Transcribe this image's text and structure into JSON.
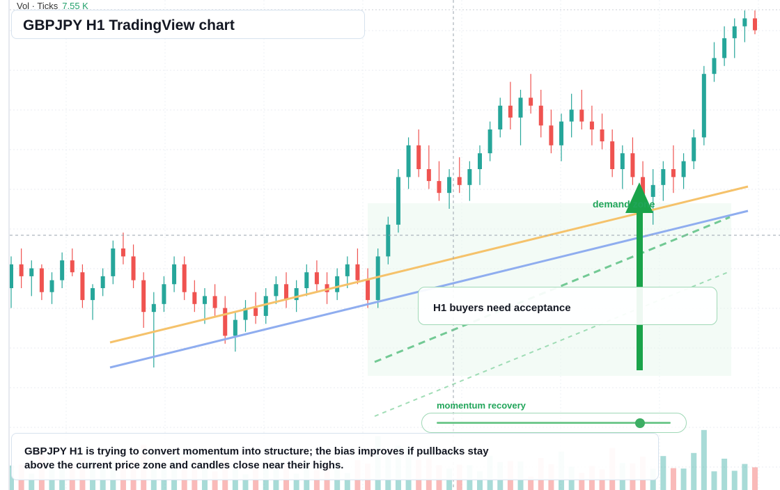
{
  "header": {
    "vol_label": "Vol · Ticks",
    "vol_value": "7.55 K",
    "title": "GBPJPY H1 TradingView chart"
  },
  "annotations": {
    "demand_zone": "demand zone",
    "callout": "H1 buyers need acceptance",
    "momentum_label": "momentum recovery",
    "momentum_level": 0.87
  },
  "footer": {
    "summary": "GBPJPY H1 is trying to convert momentum into structure; the bias improves if pullbacks stay above the current price zone and candles close near their highs."
  },
  "colors": {
    "up": "#26a69a",
    "down": "#ef5350",
    "trend_orange": "#f5c26b",
    "trend_blue": "#8fadef",
    "accent_green": "#21a55a"
  },
  "chart_data": {
    "type": "candlestick",
    "symbol": "GBPJPY",
    "timeframe": "H1",
    "candles_ohlc_relative": [
      [
        0.3,
        0.38,
        0.25,
        0.36
      ],
      [
        0.36,
        0.4,
        0.3,
        0.33
      ],
      [
        0.33,
        0.37,
        0.28,
        0.35
      ],
      [
        0.35,
        0.36,
        0.27,
        0.29
      ],
      [
        0.29,
        0.34,
        0.26,
        0.32
      ],
      [
        0.32,
        0.39,
        0.3,
        0.37
      ],
      [
        0.37,
        0.4,
        0.33,
        0.34
      ],
      [
        0.34,
        0.36,
        0.25,
        0.27
      ],
      [
        0.27,
        0.31,
        0.22,
        0.3
      ],
      [
        0.3,
        0.35,
        0.28,
        0.33
      ],
      [
        0.33,
        0.42,
        0.31,
        0.4
      ],
      [
        0.4,
        0.44,
        0.36,
        0.38
      ],
      [
        0.38,
        0.41,
        0.3,
        0.32
      ],
      [
        0.32,
        0.34,
        0.2,
        0.24
      ],
      [
        0.24,
        0.29,
        0.1,
        0.26
      ],
      [
        0.26,
        0.33,
        0.24,
        0.31
      ],
      [
        0.31,
        0.38,
        0.29,
        0.36
      ],
      [
        0.36,
        0.38,
        0.27,
        0.29
      ],
      [
        0.29,
        0.32,
        0.24,
        0.26
      ],
      [
        0.26,
        0.3,
        0.21,
        0.28
      ],
      [
        0.28,
        0.31,
        0.23,
        0.25
      ],
      [
        0.25,
        0.28,
        0.16,
        0.18
      ],
      [
        0.18,
        0.24,
        0.14,
        0.22
      ],
      [
        0.22,
        0.27,
        0.19,
        0.25
      ],
      [
        0.25,
        0.29,
        0.21,
        0.23
      ],
      [
        0.23,
        0.3,
        0.21,
        0.28
      ],
      [
        0.28,
        0.33,
        0.26,
        0.31
      ],
      [
        0.31,
        0.34,
        0.25,
        0.27
      ],
      [
        0.27,
        0.32,
        0.24,
        0.3
      ],
      [
        0.3,
        0.36,
        0.28,
        0.34
      ],
      [
        0.34,
        0.37,
        0.29,
        0.31
      ],
      [
        0.31,
        0.34,
        0.26,
        0.29
      ],
      [
        0.29,
        0.35,
        0.27,
        0.33
      ],
      [
        0.33,
        0.38,
        0.3,
        0.36
      ],
      [
        0.36,
        0.4,
        0.31,
        0.32
      ],
      [
        0.32,
        0.35,
        0.25,
        0.27
      ],
      [
        0.27,
        0.4,
        0.25,
        0.38
      ],
      [
        0.38,
        0.48,
        0.36,
        0.46
      ],
      [
        0.46,
        0.6,
        0.44,
        0.58
      ],
      [
        0.58,
        0.68,
        0.55,
        0.66
      ],
      [
        0.66,
        0.7,
        0.58,
        0.6
      ],
      [
        0.6,
        0.66,
        0.55,
        0.57
      ],
      [
        0.57,
        0.62,
        0.52,
        0.54
      ],
      [
        0.54,
        0.6,
        0.5,
        0.58
      ],
      [
        0.58,
        0.63,
        0.54,
        0.56
      ],
      [
        0.56,
        0.62,
        0.52,
        0.6
      ],
      [
        0.6,
        0.66,
        0.56,
        0.64
      ],
      [
        0.64,
        0.72,
        0.62,
        0.7
      ],
      [
        0.7,
        0.78,
        0.68,
        0.76
      ],
      [
        0.76,
        0.82,
        0.7,
        0.73
      ],
      [
        0.73,
        0.8,
        0.66,
        0.78
      ],
      [
        0.78,
        0.84,
        0.74,
        0.76
      ],
      [
        0.76,
        0.8,
        0.68,
        0.71
      ],
      [
        0.71,
        0.75,
        0.64,
        0.66
      ],
      [
        0.66,
        0.74,
        0.62,
        0.72
      ],
      [
        0.72,
        0.79,
        0.68,
        0.75
      ],
      [
        0.75,
        0.8,
        0.7,
        0.72
      ],
      [
        0.72,
        0.76,
        0.66,
        0.7
      ],
      [
        0.7,
        0.74,
        0.65,
        0.67
      ],
      [
        0.67,
        0.7,
        0.58,
        0.6
      ],
      [
        0.6,
        0.66,
        0.55,
        0.64
      ],
      [
        0.64,
        0.68,
        0.56,
        0.58
      ],
      [
        0.58,
        0.62,
        0.5,
        0.53
      ],
      [
        0.53,
        0.6,
        0.46,
        0.56
      ],
      [
        0.56,
        0.62,
        0.52,
        0.6
      ],
      [
        0.6,
        0.66,
        0.54,
        0.58
      ],
      [
        0.58,
        0.64,
        0.55,
        0.62
      ],
      [
        0.62,
        0.7,
        0.6,
        0.68
      ],
      [
        0.68,
        0.86,
        0.66,
        0.84
      ],
      [
        0.84,
        0.92,
        0.82,
        0.88
      ],
      [
        0.88,
        0.96,
        0.86,
        0.93
      ],
      [
        0.93,
        0.98,
        0.88,
        0.96
      ],
      [
        0.96,
        1.0,
        0.92,
        0.98
      ],
      [
        0.98,
        1.0,
        0.94,
        0.95
      ]
    ]
  }
}
